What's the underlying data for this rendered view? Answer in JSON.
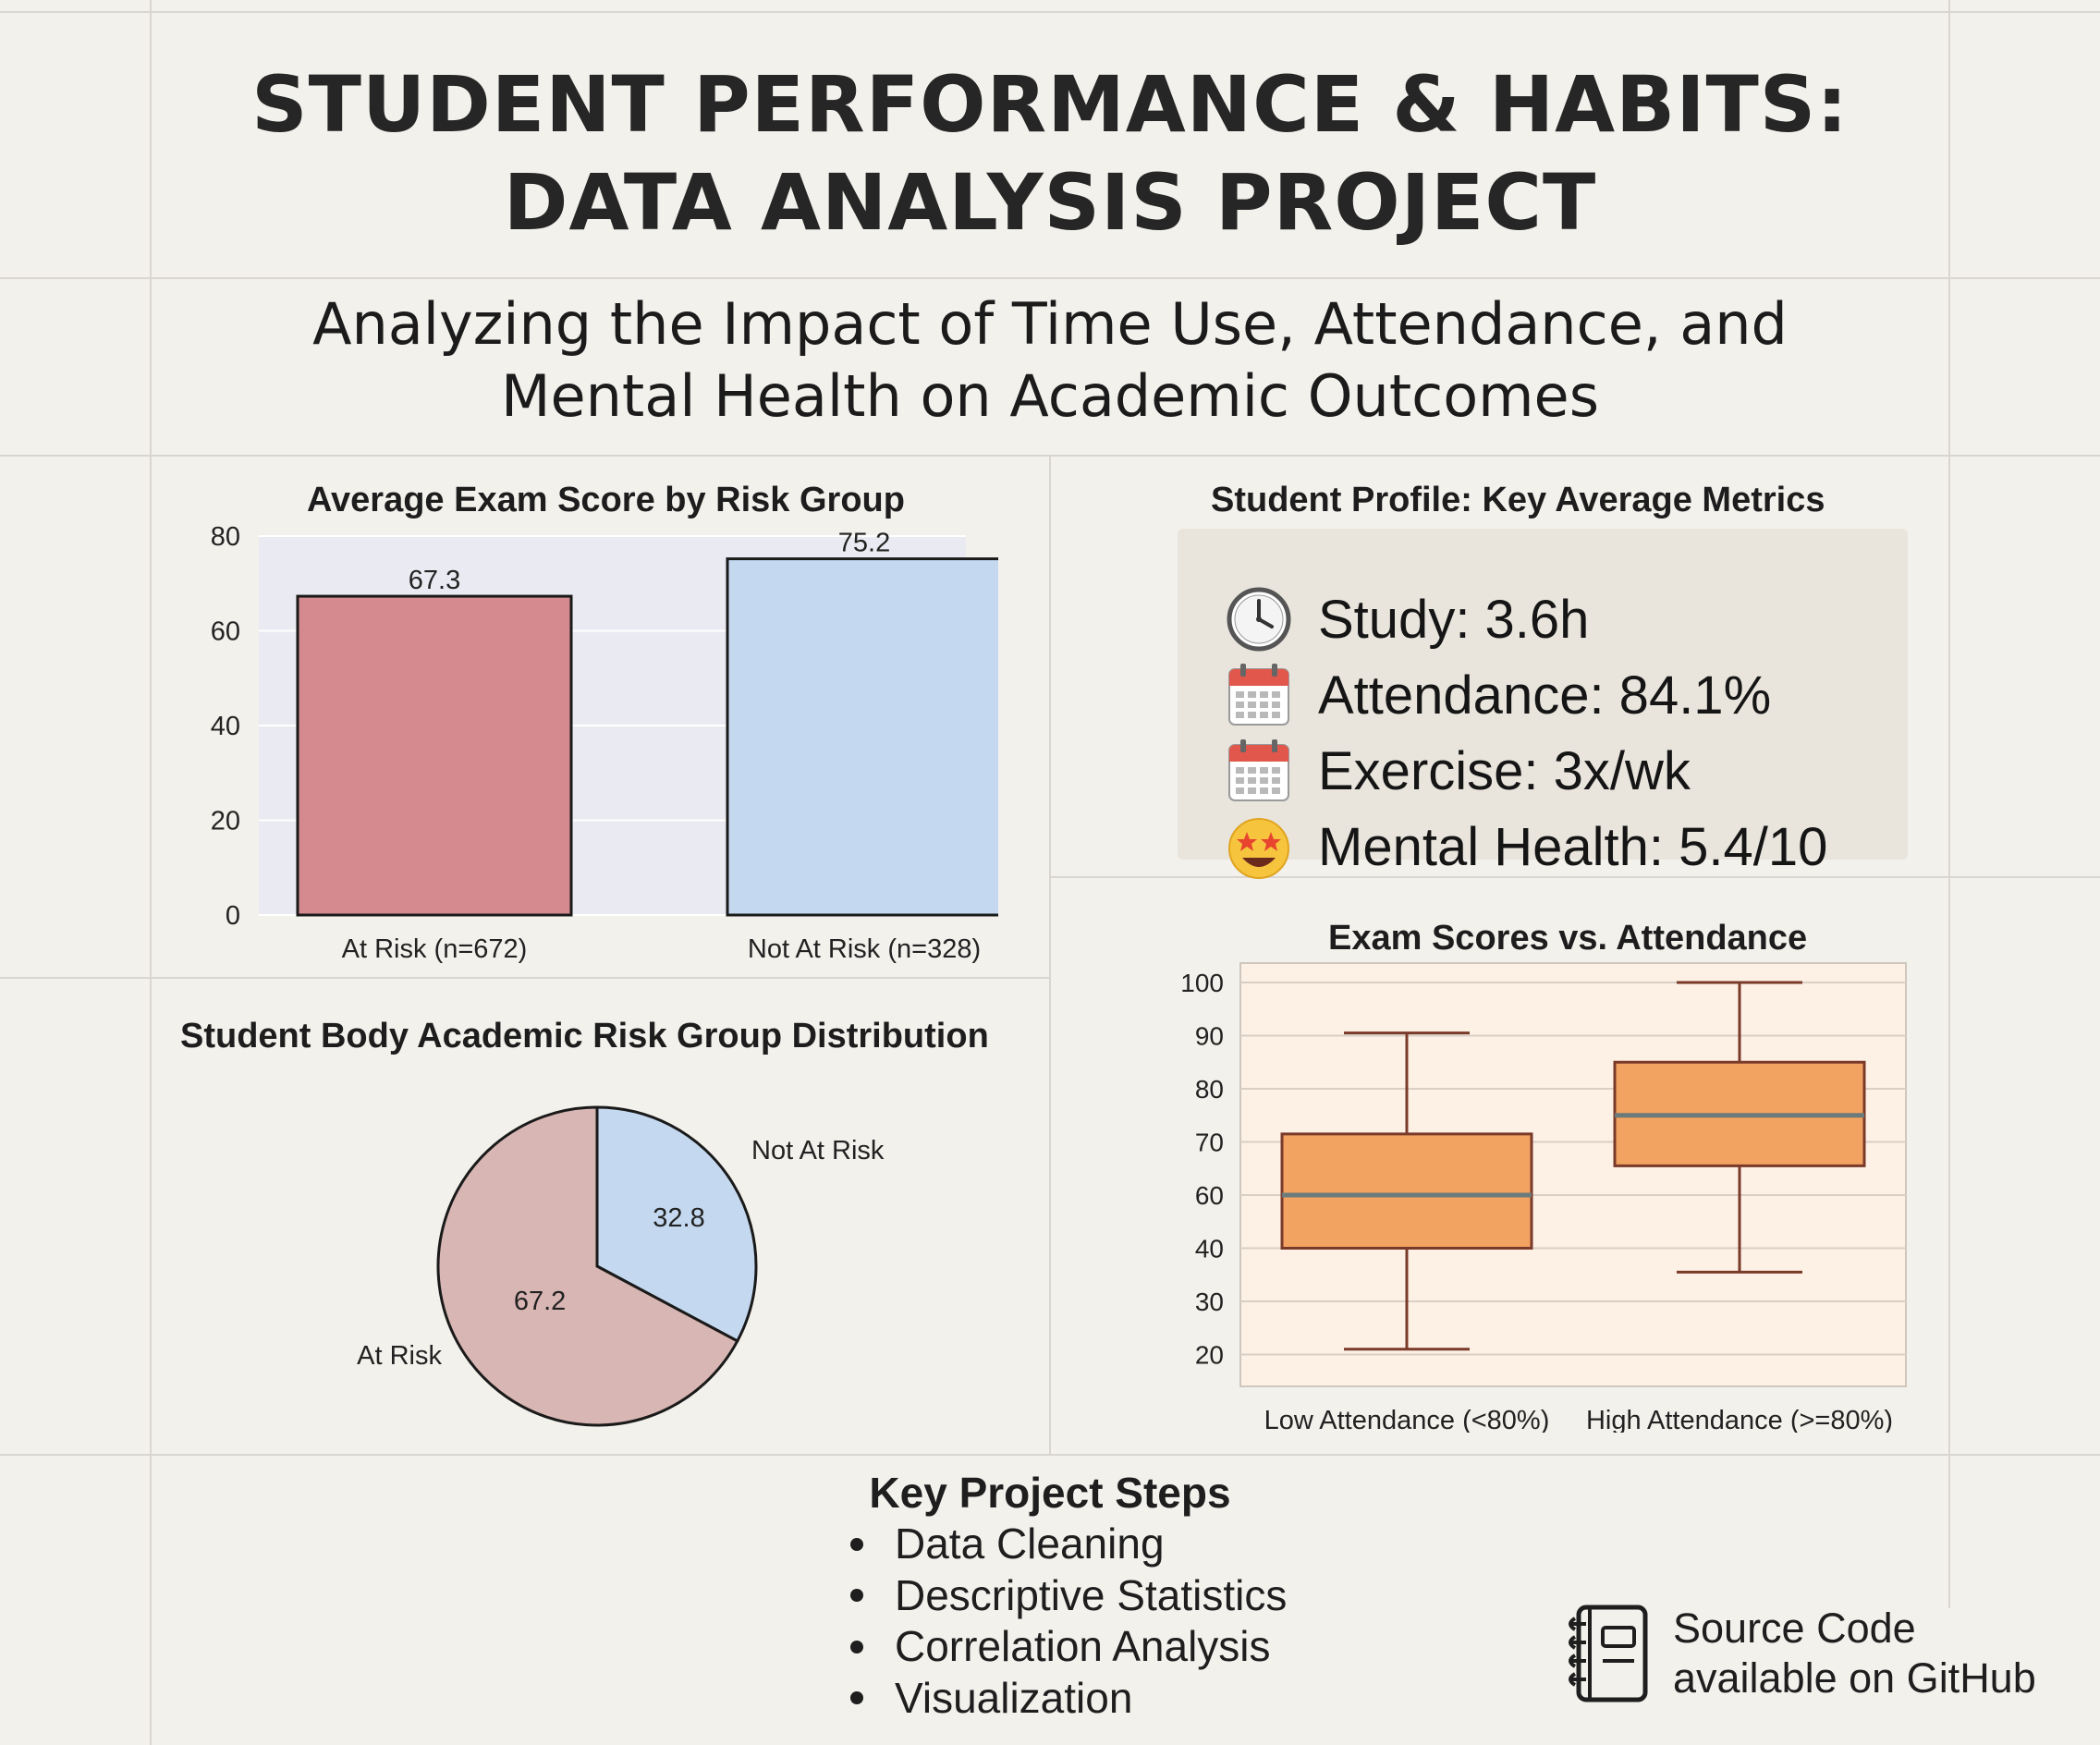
{
  "header": {
    "title_line1": "STUDENT PERFORMANCE & HABITS:",
    "title_line2": "DATA ANALYSIS PROJECT",
    "subtitle_line1": "Analyzing the Impact of Time Use, Attendance, and",
    "subtitle_line2": "Mental Health on Academic Outcomes"
  },
  "chart_data": [
    {
      "type": "bar",
      "title": "Average Exam Score by Risk Group",
      "categories": [
        "At Risk (n=672)",
        "Not At Risk (n=328)"
      ],
      "values": [
        67.3,
        75.2
      ],
      "value_labels": [
        "67.3",
        "75.2"
      ],
      "colors": [
        "#d48a8f",
        "#c4d9f0"
      ],
      "ylim": [
        0,
        80
      ],
      "yticks": [
        0,
        20,
        40,
        60,
        80
      ],
      "ytick_labels": [
        "0",
        "20",
        "40",
        "60",
        "80"
      ],
      "grid": true,
      "background": "#eaeaf2"
    },
    {
      "type": "pie",
      "title": "Student Body Academic Risk Group Distribution",
      "labels": [
        "Not At Risk",
        "At Risk"
      ],
      "values": [
        32.8,
        67.2
      ],
      "value_labels": [
        "32.8",
        "67.2"
      ],
      "colors": [
        "#c4d9f0",
        "#d8b6b3"
      ]
    },
    {
      "type": "box",
      "title": "Exam Scores vs. Attendance",
      "categories": [
        "Low Attendance (<80%)",
        "High Attendance (>=80%)"
      ],
      "boxes": [
        {
          "whisker_low": 21,
          "q1": 40,
          "median": 60,
          "q3": 71.5,
          "whisker_high": 90.5
        },
        {
          "whisker_low": 35.5,
          "q1": 65.5,
          "median": 75,
          "q3": 85,
          "whisker_high": 100
        }
      ],
      "yticks": [
        20,
        30,
        40,
        60,
        70,
        80,
        90,
        100
      ],
      "ytick_labels": [
        "20",
        "30",
        "40",
        "60",
        "70",
        "80",
        "90",
        "100"
      ],
      "box_color": "#f2a261",
      "median_color": "#6b7b7b",
      "background": "#fdf1e6",
      "grid": true
    }
  ],
  "profile": {
    "title": "Student Profile: Key Average Metrics",
    "metrics": [
      {
        "icon": "clock-icon",
        "text": "Study: 3.6h"
      },
      {
        "icon": "calendar-icon",
        "text": "Attendance: 84.1%"
      },
      {
        "icon": "calendar-icon",
        "text": "Exercise: 3x/wk"
      },
      {
        "icon": "star-struck-face-icon",
        "text": "Mental Health: 5.4/10"
      }
    ]
  },
  "steps": {
    "title": "Key Project Steps",
    "items": [
      "Data Cleaning",
      "Descriptive Statistics",
      "Correlation Analysis",
      "Visualization"
    ]
  },
  "source": {
    "icon": "notebook-icon",
    "line1": "Source Code",
    "line2": "available on GitHub"
  }
}
